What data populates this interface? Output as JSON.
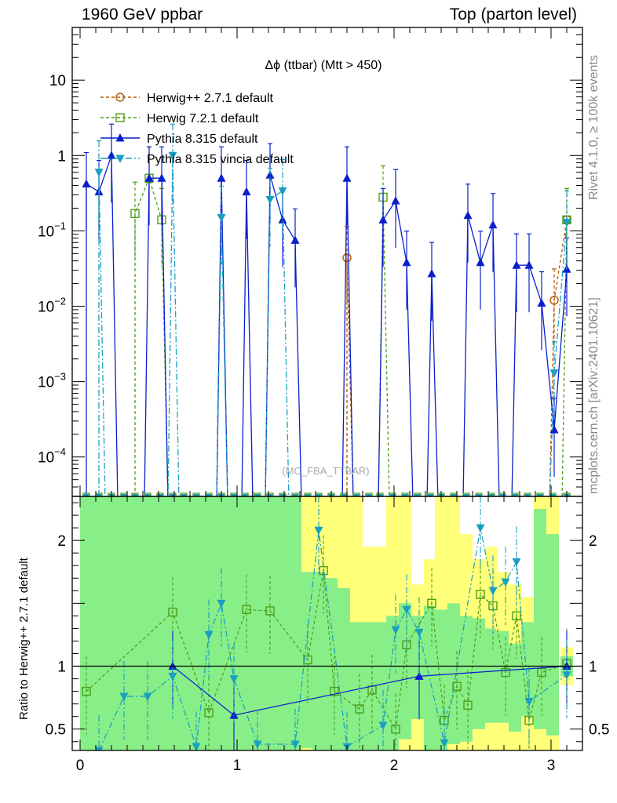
{
  "header": {
    "left": "1960 GeV ppbar",
    "right": "Top (parton level)"
  },
  "side": {
    "top": "Rivet 4.1.0, ≥ 100k events",
    "bottom": "mcplots.cern.ch [arXiv:2401.10621]"
  },
  "chart_data": [
    {
      "type": "line",
      "panel": "main",
      "title": "Δϕ (ttbar) (Mtt > 450)",
      "watermark": "(MC_FBA_TTBAR)",
      "yscale": "log",
      "xlim": [
        -0.05,
        3.2
      ],
      "ylim": [
        3e-05,
        50
      ],
      "xticks": [
        0,
        1,
        2,
        3
      ],
      "yticks": [
        {
          "v": 0.0001,
          "label": "10",
          "exp": "−4"
        },
        {
          "v": 0.001,
          "label": "10",
          "exp": "−3"
        },
        {
          "v": 0.01,
          "label": "10",
          "exp": "−2"
        },
        {
          "v": 0.1,
          "label": "10",
          "exp": "−1"
        },
        {
          "v": 1,
          "label": "1",
          "exp": ""
        },
        {
          "v": 10,
          "label": "10",
          "exp": ""
        }
      ],
      "legend": [
        {
          "name": "Herwig++ 2.7.1 default",
          "color": "#b35900",
          "dash": "4,3",
          "marker": "circle"
        },
        {
          "name": "Herwig 7.2.1 default",
          "color": "#4c9e1a",
          "dash": "4,3",
          "marker": "square"
        },
        {
          "name": "Pythia 8.315 default",
          "color": "#0a1fcc",
          "dash": "",
          "marker": "triangle-up"
        },
        {
          "name": "Pythia 8.315 vincia default",
          "color": "#1a9fc0",
          "dash": "8,3,2,3",
          "marker": "triangle-down"
        }
      ],
      "series": [
        {
          "name": "Herwig++ 2.7.1 default",
          "x": [
            1.7,
            3.02,
            3.1
          ],
          "y": [
            0.044,
            0.012,
            0.14
          ]
        },
        {
          "name": "Herwig 7.2.1 default",
          "x": [
            0.35,
            0.44,
            0.52,
            1.93,
            3.1
          ],
          "y": [
            0.17,
            0.5,
            0.14,
            0.28,
            0.14
          ]
        },
        {
          "name": "Pythia 8.315 default",
          "x": [
            0.04,
            0.12,
            0.2,
            0.44,
            0.52,
            0.9,
            1.06,
            1.21,
            1.29,
            1.37,
            1.7,
            1.93,
            2.01,
            2.08,
            2.24,
            2.47,
            2.55,
            2.63,
            2.78,
            2.86,
            2.94,
            3.02,
            3.1
          ],
          "y": [
            0.42,
            0.33,
            1.0,
            0.5,
            0.5,
            0.5,
            0.33,
            0.55,
            0.14,
            0.075,
            0.5,
            0.14,
            0.25,
            0.038,
            0.027,
            0.16,
            0.038,
            0.12,
            0.035,
            0.035,
            0.011,
            0.00023,
            0.031
          ]
        },
        {
          "name": "Pythia 8.315 vincia default",
          "x": [
            0.12,
            0.59,
            0.9,
            1.21,
            1.29,
            3.02,
            3.1
          ],
          "y": [
            0.6,
            1.0,
            0.15,
            0.26,
            0.34,
            0.0013,
            0.13
          ]
        }
      ]
    },
    {
      "type": "line",
      "panel": "ratio",
      "ylabel": "Ratio to Herwig++ 2.7.1 default",
      "xlim": [
        -0.05,
        3.2
      ],
      "ylim": [
        0.33,
        2.35
      ],
      "xticks": [
        0,
        1,
        2,
        3
      ],
      "yticks": [
        {
          "v": 0.5,
          "label": "0.5"
        },
        {
          "v": 1,
          "label": "1"
        },
        {
          "v": 2,
          "label": "2"
        }
      ],
      "reference": 1,
      "series": [
        {
          "name": "Herwig 7.2.1 default",
          "x": [
            0.04,
            0.59,
            0.82,
            1.06,
            1.21,
            1.45,
            1.55,
            1.62,
            1.78,
            1.86,
            2.01,
            2.08,
            2.24,
            2.32,
            2.4,
            2.47,
            2.55,
            2.63,
            2.71,
            2.78,
            2.86,
            2.94,
            3.1
          ],
          "y": [
            0.8,
            1.43,
            0.63,
            1.45,
            1.44,
            1.05,
            1.76,
            0.8,
            0.66,
            0.81,
            0.5,
            1.17,
            1.5,
            0.57,
            0.84,
            0.69,
            1.57,
            1.48,
            0.95,
            1.4,
            0.57,
            0.95,
            1.02
          ]
        },
        {
          "name": "Pythia 8.315 default",
          "x": [
            0.59,
            0.98,
            2.16,
            3.1
          ],
          "y": [
            1.0,
            0.61,
            0.92,
            1.0
          ]
        },
        {
          "name": "Pythia 8.315 vincia default",
          "x": [
            0.12,
            0.28,
            0.43,
            0.59,
            0.74,
            0.82,
            0.9,
            0.98,
            1.13,
            1.37,
            1.52,
            1.7,
            1.93,
            2.01,
            2.08,
            2.16,
            2.32,
            2.55,
            2.63,
            2.71,
            2.78,
            2.86,
            3.1
          ],
          "y": [
            0.33,
            0.76,
            0.76,
            0.92,
            0.36,
            1.25,
            1.5,
            0.9,
            0.38,
            0.38,
            2.08,
            0.36,
            0.53,
            1.29,
            1.45,
            1.27,
            0.39,
            2.1,
            1.6,
            1.67,
            1.83,
            0.72,
            0.93
          ]
        }
      ],
      "bands": {
        "x": [
          0.04,
          0.12,
          0.2,
          0.28,
          0.35,
          0.43,
          0.51,
          0.59,
          0.66,
          0.74,
          0.82,
          0.9,
          0.98,
          1.05,
          1.13,
          1.21,
          1.29,
          1.37,
          1.45,
          1.52,
          1.6,
          1.68,
          1.76,
          1.84,
          1.91,
          1.99,
          2.07,
          2.15,
          2.23,
          2.3,
          2.38,
          2.46,
          2.54,
          2.62,
          2.69,
          2.77,
          2.85,
          2.93,
          3.01,
          3.1
        ],
        "green_lo": [
          0.33,
          0.33,
          0.33,
          0.33,
          0.33,
          0.33,
          0.33,
          0.33,
          0.33,
          0.33,
          0.33,
          0.33,
          0.33,
          0.33,
          0.33,
          0.33,
          0.33,
          0.33,
          0.35,
          0.33,
          0.33,
          0.33,
          0.33,
          0.33,
          0.33,
          0.33,
          0.42,
          0.58,
          0.33,
          0.33,
          0.38,
          0.4,
          0.5,
          0.55,
          0.55,
          0.48,
          0.6,
          0.5,
          0.45,
          0.92
        ],
        "green_hi": [
          2.35,
          2.35,
          2.35,
          2.35,
          2.35,
          2.35,
          2.35,
          2.35,
          2.35,
          2.35,
          2.35,
          2.35,
          2.35,
          2.35,
          2.35,
          2.35,
          2.35,
          2.35,
          1.75,
          1.75,
          1.7,
          1.62,
          1.35,
          1.35,
          1.35,
          1.4,
          1.5,
          1.4,
          1.48,
          1.45,
          1.5,
          1.4,
          1.38,
          1.3,
          1.28,
          1.18,
          1.35,
          2.25,
          2.05,
          1.08
        ],
        "yellow_lo": [
          0.33,
          0.33,
          0.33,
          0.33,
          0.33,
          0.33,
          0.33,
          0.33,
          0.33,
          0.33,
          0.33,
          0.33,
          0.33,
          0.33,
          0.33,
          0.33,
          0.33,
          0.33,
          0.33,
          0.33,
          0.33,
          0.33,
          0.33,
          0.33,
          0.33,
          0.33,
          0.33,
          0.33,
          0.33,
          0.33,
          0.33,
          0.33,
          0.33,
          0.33,
          0.33,
          0.33,
          0.33,
          0.33,
          0.33,
          0.85
        ],
        "yellow_hi": [
          2.35,
          2.35,
          2.35,
          2.35,
          2.35,
          2.35,
          2.35,
          2.35,
          2.35,
          2.35,
          2.35,
          2.35,
          2.35,
          2.35,
          2.35,
          2.35,
          2.35,
          2.35,
          2.35,
          2.35,
          2.35,
          2.35,
          2.35,
          1.95,
          1.95,
          2.35,
          2.35,
          1.65,
          1.85,
          2.35,
          2.35,
          2.05,
          1.85,
          1.95,
          1.75,
          1.65,
          1.55,
          2.35,
          2.35,
          1.15
        ]
      }
    }
  ]
}
